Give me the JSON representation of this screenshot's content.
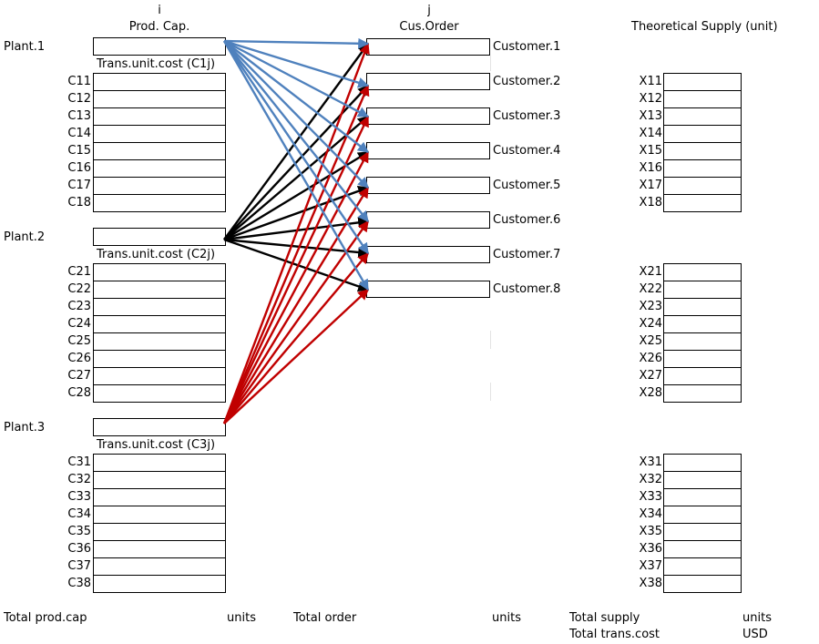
{
  "headers": {
    "i_index": "i",
    "prod_cap": "Prod. Cap.",
    "j_index": "j",
    "cus_order": "Cus.Order",
    "theoretical_supply": "Theoretical Supply (unit)"
  },
  "plants": [
    {
      "label": "Plant.1",
      "cost_caption": "Trans.unit.cost (C1j)",
      "cost_labels": [
        "C11",
        "C12",
        "C13",
        "C14",
        "C15",
        "C16",
        "C17",
        "C18"
      ],
      "supply_labels": [
        "X11",
        "X12",
        "X13",
        "X14",
        "X15",
        "X16",
        "X17",
        "X18"
      ]
    },
    {
      "label": "Plant.2",
      "cost_caption": "Trans.unit.cost (C2j)",
      "cost_labels": [
        "C21",
        "C22",
        "C23",
        "C24",
        "C25",
        "C26",
        "C27",
        "C28"
      ],
      "supply_labels": [
        "X21",
        "X22",
        "X23",
        "X24",
        "X25",
        "X26",
        "X27",
        "X28"
      ]
    },
    {
      "label": "Plant.3",
      "cost_caption": "Trans.unit.cost (C3j)",
      "cost_labels": [
        "C31",
        "C32",
        "C33",
        "C34",
        "C35",
        "C36",
        "C37",
        "C38"
      ],
      "supply_labels": [
        "X31",
        "X32",
        "X33",
        "X34",
        "X35",
        "X36",
        "X37",
        "X38"
      ]
    }
  ],
  "customers": [
    "Customer.1",
    "Customer.2",
    "Customer.3",
    "Customer.4",
    "Customer.5",
    "Customer.6",
    "Customer.7",
    "Customer.8"
  ],
  "footer": {
    "total_prod_cap": "Total prod.cap",
    "units_1": "units",
    "total_order": "Total order",
    "units_2": "units",
    "total_supply": "Total supply",
    "units_3": "units",
    "total_trans_cost": "Total trans.cost",
    "usd": "USD"
  },
  "colors": {
    "plant1_arrows": "#4f81bd",
    "plant2_arrows": "#000000",
    "plant3_arrows": "#c00000"
  }
}
